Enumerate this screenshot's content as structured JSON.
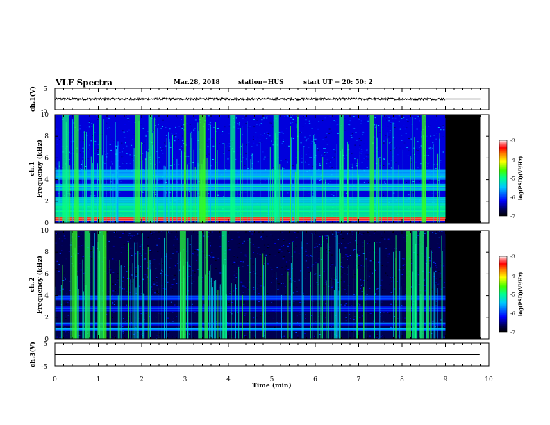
{
  "header": {
    "title": "VLF Spectra",
    "date": "Mar.28, 2018",
    "station": "station=HUS",
    "start": "start  UT =   20: 50: 2"
  },
  "chart_data": [
    {
      "type": "line",
      "panel": "ch1-waveform",
      "ylabel": "ch.1(V)",
      "ylim": [
        -5,
        5
      ],
      "yticks": [
        "5",
        "-5"
      ],
      "xlim": [
        0,
        10
      ],
      "signal": {
        "mean": 0.0,
        "amplitude": 0.5,
        "data_end_min": 9.0,
        "flat_until": 9.8
      }
    },
    {
      "type": "heatmap",
      "panel": "ch1-spectrogram",
      "ylabel": "ch.1",
      "ylabel2": "Frequency (kHz)",
      "ylim": [
        0,
        10
      ],
      "yticks": [
        "0",
        "2",
        "4",
        "6",
        "8",
        "10"
      ],
      "xlim": [
        0,
        10
      ],
      "data_end_min": 9.0,
      "blank_end_min": 9.8,
      "colorbar": {
        "label": "log(PSD)(V²/Hz)",
        "ticks": [
          "-3",
          "-4",
          "-5",
          "-6",
          "-7"
        ],
        "range": [
          -7,
          -3
        ]
      },
      "background_level": -6.3,
      "bands_khz": [
        [
          0.2,
          0.6,
          -3.6
        ],
        [
          0.6,
          1.6,
          -5.0
        ],
        [
          1.6,
          2.4,
          -5.3
        ],
        [
          3.0,
          3.6,
          -5.4
        ],
        [
          4.0,
          4.9,
          -5.5
        ]
      ],
      "burst_minutes": [
        0.25,
        0.5,
        1.05,
        1.9,
        2.2,
        3.0,
        3.4,
        4.1,
        5.1,
        5.6,
        6.6,
        7.3,
        8.5
      ]
    },
    {
      "type": "heatmap",
      "panel": "ch2-spectrogram",
      "ylabel": "ch.2",
      "ylabel2": "Frequency (kHz)",
      "ylim": [
        0,
        10
      ],
      "yticks": [
        "0",
        "2",
        "4",
        "6",
        "8",
        "10"
      ],
      "xlim": [
        0,
        10
      ],
      "data_end_min": 9.0,
      "blank_end_min": 9.8,
      "colorbar": {
        "label": "log(PSD)(V²/Hz)",
        "ticks": [
          "-3",
          "-4",
          "-5",
          "-6",
          "-7"
        ],
        "range": [
          -7,
          -3
        ]
      },
      "background_level": -6.7,
      "bands_khz": [
        [
          0.8,
          1.0,
          -5.8
        ],
        [
          1.3,
          1.5,
          -5.8
        ],
        [
          2.5,
          3.0,
          -6.0
        ],
        [
          3.6,
          4.0,
          -6.1
        ]
      ],
      "burst_minutes": [
        0.45,
        0.75,
        1.05,
        1.15,
        2.95,
        3.35,
        3.5,
        3.9,
        8.15,
        8.3,
        8.45,
        8.6
      ]
    },
    {
      "type": "line",
      "panel": "ch3-waveform",
      "ylabel": "ch.3(V)",
      "ylim": [
        -5,
        5
      ],
      "yticks": [
        "5",
        "-5"
      ],
      "xlim": [
        0,
        10
      ],
      "signal": {
        "mean": 0.0,
        "amplitude": 0.0,
        "data_end_min": 9.8,
        "flat_until": 9.8
      }
    }
  ],
  "xaxis": {
    "label": "Time (min)",
    "ticks": [
      "0",
      "1",
      "2",
      "3",
      "4",
      "5",
      "6",
      "7",
      "8",
      "9",
      "10"
    ]
  }
}
